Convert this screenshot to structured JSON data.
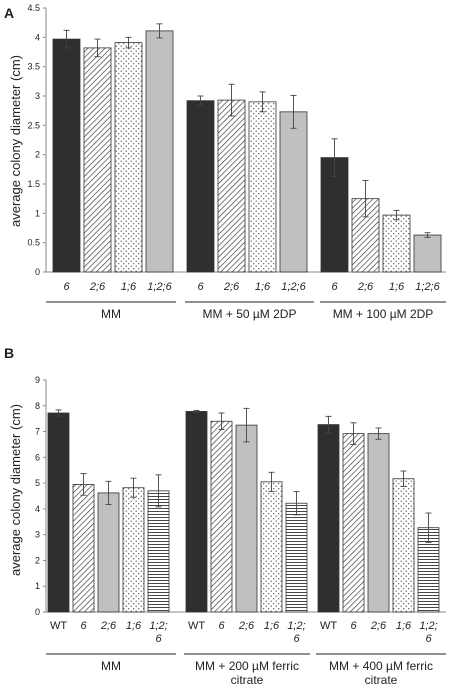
{
  "chart_data": [
    {
      "type": "bar",
      "panel_label": "A",
      "ylabel": "average colony diameter (cm)",
      "ylim": [
        0,
        4.5
      ],
      "yticks": [
        "0",
        "0.5",
        "1",
        "1.5",
        "2",
        "2.5",
        "3",
        "3.5",
        "4",
        "4.5"
      ],
      "grid": false,
      "groups": [
        {
          "label": "MM",
          "bars": [
            {
              "label": "6",
              "value": 3.97,
              "error": 0.15,
              "pattern": "solid-dark"
            },
            {
              "label": "2;6",
              "value": 3.82,
              "error": 0.15,
              "pattern": "diagonal"
            },
            {
              "label": "1;6",
              "value": 3.91,
              "error": 0.09,
              "pattern": "dots"
            },
            {
              "label": "1;2;6",
              "value": 4.11,
              "error": 0.12,
              "pattern": "solid-light"
            }
          ]
        },
        {
          "label": "MM + 50 µM 2DP",
          "bars": [
            {
              "label": "6",
              "value": 2.92,
              "error": 0.08,
              "pattern": "solid-dark"
            },
            {
              "label": "2;6",
              "value": 2.93,
              "error": 0.27,
              "pattern": "diagonal"
            },
            {
              "label": "1;6",
              "value": 2.9,
              "error": 0.17,
              "pattern": "dots"
            },
            {
              "label": "1;2;6",
              "value": 2.73,
              "error": 0.28,
              "pattern": "solid-light"
            }
          ]
        },
        {
          "label": "MM + 100 µM 2DP",
          "bars": [
            {
              "label": "6",
              "value": 1.95,
              "error": 0.32,
              "pattern": "solid-dark"
            },
            {
              "label": "2;6",
              "value": 1.25,
              "error": 0.31,
              "pattern": "diagonal"
            },
            {
              "label": "1;6",
              "value": 0.97,
              "error": 0.08,
              "pattern": "dots"
            },
            {
              "label": "1;2;6",
              "value": 0.63,
              "error": 0.04,
              "pattern": "solid-light"
            }
          ]
        }
      ]
    },
    {
      "type": "bar",
      "panel_label": "B",
      "ylabel": "average colony diameter (cm)",
      "ylim": [
        0,
        9
      ],
      "yticks": [
        "0",
        "1",
        "2",
        "3",
        "4",
        "5",
        "6",
        "7",
        "8",
        "9"
      ],
      "grid": false,
      "groups": [
        {
          "label": "MM",
          "bars": [
            {
              "label": "WT",
              "value": 7.72,
              "error": 0.12,
              "pattern": "solid-dark"
            },
            {
              "label": "6",
              "value": 4.95,
              "error": 0.42,
              "pattern": "diagonal"
            },
            {
              "label": "2;6",
              "value": 4.62,
              "error": 0.45,
              "pattern": "solid-light"
            },
            {
              "label": "1;6",
              "value": 4.82,
              "error": 0.37,
              "pattern": "dots"
            },
            {
              "label": "1;2;6",
              "value": 4.7,
              "error": 0.62,
              "pattern": "horizontal"
            }
          ]
        },
        {
          "label": "MM + 200 µM ferric citrate",
          "bars": [
            {
              "label": "WT",
              "value": 7.78,
              "error": 0.04,
              "pattern": "solid-dark"
            },
            {
              "label": "6",
              "value": 7.4,
              "error": 0.32,
              "pattern": "diagonal"
            },
            {
              "label": "2;6",
              "value": 7.25,
              "error": 0.65,
              "pattern": "solid-light"
            },
            {
              "label": "1;6",
              "value": 5.05,
              "error": 0.37,
              "pattern": "dots"
            },
            {
              "label": "1;2;6",
              "value": 4.22,
              "error": 0.45,
              "pattern": "horizontal"
            }
          ]
        },
        {
          "label": "MM + 400 µM ferric citrate",
          "bars": [
            {
              "label": "WT",
              "value": 7.27,
              "error": 0.32,
              "pattern": "solid-dark"
            },
            {
              "label": "6",
              "value": 6.92,
              "error": 0.42,
              "pattern": "diagonal"
            },
            {
              "label": "2;6",
              "value": 6.92,
              "error": 0.22,
              "pattern": "solid-light"
            },
            {
              "label": "1;6",
              "value": 5.17,
              "error": 0.3,
              "pattern": "dots"
            },
            {
              "label": "1;2;6",
              "value": 3.27,
              "error": 0.57,
              "pattern": "horizontal"
            }
          ]
        }
      ]
    }
  ],
  "colors": {
    "solid_dark": "#2f2f2f",
    "solid_light": "#c0c0c0",
    "pattern_ink": "#333333",
    "axis": "#8a8a8a"
  }
}
